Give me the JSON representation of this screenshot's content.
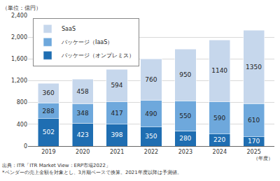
{
  "chart_data": {
    "type": "bar",
    "stacked": true,
    "data_labels": true,
    "grid": true,
    "legend": "top-left",
    "ylabel": "（単位：億円）",
    "xlabel": "（年度）",
    "annotations": [
      "出典：ITR「ITR Market View：ERP市場2022」",
      "*ベンダーの売上金額を対象とし、3月期ベースで換算。2021年度以降は予測値。"
    ],
    "categories": [
      "2019",
      "2020",
      "2021",
      "2022",
      "2023",
      "2024",
      "2025"
    ],
    "series": [
      {
        "name": "パッケージ（オンプレミス）",
        "color": "#1f6eb2",
        "values": [
          502,
          423,
          398,
          350,
          280,
          220,
          170
        ]
      },
      {
        "name": "パッケージ（IaaS）",
        "color": "#6ea8dc",
        "values": [
          288,
          348,
          417,
          490,
          550,
          590,
          610
        ]
      },
      {
        "name": "SaaS",
        "color": "#c6d7ec",
        "values": [
          360,
          458,
          594,
          760,
          950,
          1140,
          1350
        ]
      }
    ],
    "ylim": [
      0,
      2400
    ],
    "yticks": [
      0,
      400,
      800,
      {
        "value": 1200,
        "label": "1,200"
      },
      {
        "value": 1600,
        "label": "1,600"
      },
      {
        "value": 2000,
        "label": "2,000"
      },
      {
        "value": 2400,
        "label": "2,400"
      }
    ]
  }
}
